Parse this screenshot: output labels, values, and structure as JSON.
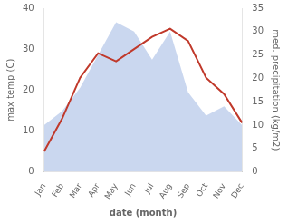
{
  "chart_data": {
    "type": "line",
    "xlabel": "date (month)",
    "ylabel": "max temp (C)",
    "y2label": "med. precipitation (kg/m2)",
    "categories": [
      "Jan",
      "Feb",
      "Mar",
      "Apr",
      "May",
      "Jun",
      "Jul",
      "Aug",
      "Sep",
      "Oct",
      "Nov",
      "Dec"
    ],
    "series": [
      {
        "type": "area",
        "axis": "y2",
        "color": "#b3c6e8",
        "values": [
          10,
          13,
          18,
          25,
          32,
          30,
          24,
          30,
          17,
          12,
          14,
          10
        ]
      },
      {
        "type": "line",
        "color": "#c0392b",
        "values": [
          5,
          13,
          23,
          29,
          27,
          30,
          33,
          35,
          32,
          23,
          19,
          12
        ]
      }
    ],
    "ylim": [
      0,
      40
    ],
    "yticks": [
      0,
      10,
      20,
      30,
      40
    ],
    "y2lim": [
      0,
      35
    ],
    "y2ticks": [
      0,
      5,
      10,
      15,
      20,
      25,
      30,
      35
    ],
    "grid": false
  }
}
